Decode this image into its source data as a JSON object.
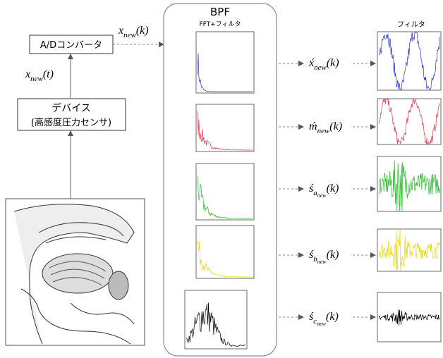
{
  "ad_converter": {
    "label": "A/Dコンバータ",
    "output": {
      "base": "x",
      "sub": "new",
      "arg": "(k)"
    }
  },
  "device": {
    "lines": [
      "デバイス",
      "(高感度圧力センサ)"
    ],
    "output": {
      "base": "x",
      "sub": "new",
      "arg": "(t)"
    }
  },
  "bpf": {
    "title": "BPF",
    "subtitle": "FFT+フィルタ"
  },
  "filter_label": "フィルタ",
  "outputs": [
    {
      "base": "x́",
      "sub": "new",
      "arg": "(k)"
    },
    {
      "base": "ḿ",
      "sub": "new",
      "arg": "(k)"
    },
    {
      "base": "ś",
      "sub": "a",
      "subsub": "new",
      "arg": "(k)"
    },
    {
      "base": "ś",
      "sub": "b",
      "subsub": "new",
      "arg": "(k)"
    },
    {
      "base": "ś",
      "sub": "c",
      "subsub": "new",
      "arg": "(k)"
    }
  ]
}
